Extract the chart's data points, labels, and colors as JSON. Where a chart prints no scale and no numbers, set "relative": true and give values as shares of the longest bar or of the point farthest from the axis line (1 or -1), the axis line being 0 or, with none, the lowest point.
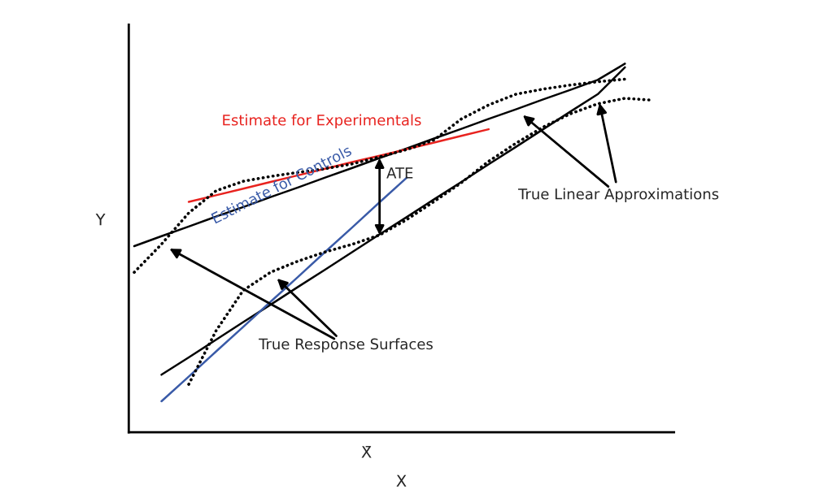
{
  "chart_data": {
    "type": "line",
    "relative": true,
    "xlabel": "X",
    "ylabel": "Y",
    "marker": "none",
    "categories": [
      null,
      null,
      null,
      null,
      null,
      null,
      null,
      null,
      null,
      null,
      null,
      null,
      null,
      null,
      null,
      null,
      null,
      null,
      null,
      null
    ],
    "series": [
      {
        "color": "#000000",
        "line_style": "solid",
        "values": [
          0.505,
          0.532,
          0.558,
          0.585,
          0.611,
          0.638,
          0.664,
          0.691,
          0.717,
          0.744,
          0.77,
          0.797,
          0.823,
          0.85,
          0.876,
          0.903,
          0.929,
          0.956,
          1.0,
          null
        ]
      },
      {
        "color": "#000000",
        "line_style": "solid",
        "values": [
          null,
          0.156,
          0.203,
          0.251,
          0.299,
          0.346,
          0.394,
          0.441,
          0.489,
          0.537,
          0.584,
          0.632,
          0.679,
          0.727,
          0.774,
          0.822,
          0.87,
          0.917,
          0.99,
          null
        ]
      },
      {
        "name": "Estimate for Experimentals",
        "color": "#e8231f",
        "line_style": "solid",
        "values": [
          null,
          null,
          0.625,
          0.643,
          0.661,
          0.679,
          0.697,
          0.715,
          0.733,
          0.75,
          0.768,
          0.786,
          0.804,
          0.822,
          null,
          null,
          null,
          null,
          null,
          null
        ]
      },
      {
        "name": "Estimate for Controls",
        "color": "#3a5ba8",
        "line_style": "solid",
        "values": [
          null,
          0.084,
          0.151,
          0.219,
          0.286,
          0.354,
          0.421,
          0.489,
          0.556,
          0.624,
          0.691,
          null,
          null,
          null,
          null,
          null,
          null,
          null,
          null,
          null
        ]
      },
      {
        "color": "#000000",
        "line_style": "dotted",
        "values": [
          0.434,
          0.51,
          0.595,
          0.655,
          0.681,
          0.694,
          0.705,
          0.715,
          0.728,
          0.747,
          0.767,
          0.793,
          0.85,
          0.888,
          0.917,
          0.931,
          0.942,
          0.951,
          0.958,
          null
        ]
      },
      {
        "color": "#000000",
        "line_style": "dotted",
        "values": [
          null,
          null,
          0.13,
          0.275,
          0.385,
          0.434,
          0.464,
          0.489,
          0.51,
          0.535,
          0.577,
          0.626,
          0.677,
          0.735,
          0.784,
          0.828,
          0.864,
          0.891,
          0.906,
          0.901
        ]
      }
    ],
    "annotations": [
      "True Linear Approximations",
      "True Response Surfaces",
      "ATE",
      "X̄"
    ]
  }
}
